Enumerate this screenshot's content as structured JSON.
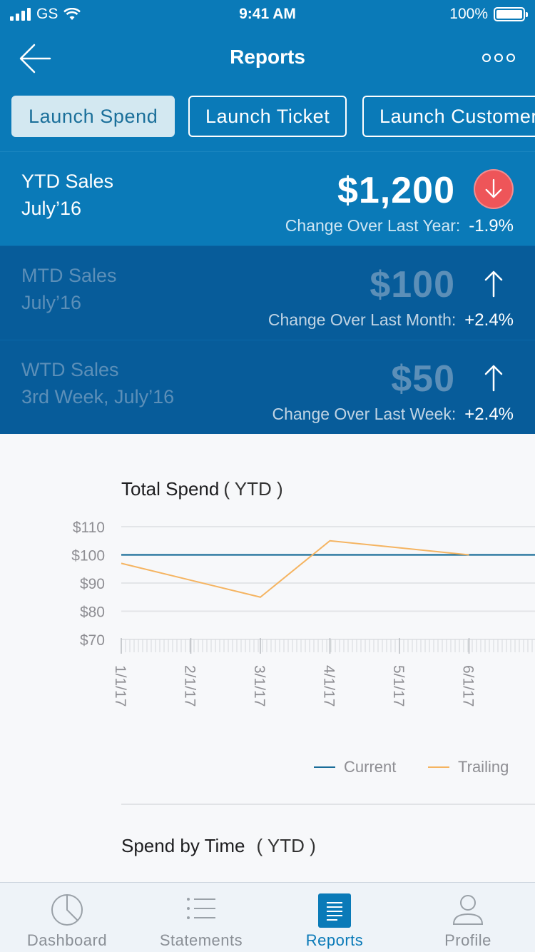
{
  "status_bar": {
    "carrier": "GS",
    "time": "9:41 AM",
    "battery": "100%"
  },
  "nav": {
    "title": "Reports"
  },
  "chips": [
    {
      "label": "Launch Spend",
      "active": true
    },
    {
      "label": "Launch Ticket",
      "active": false
    },
    {
      "label": "Launch Customer",
      "active": false
    }
  ],
  "stats": [
    {
      "title": "YTD Sales",
      "period": "July’16",
      "amount": "$1,200",
      "change_label": "Change Over Last Year:",
      "change_value": "-1.9%",
      "direction": "down"
    },
    {
      "title": "MTD Sales",
      "period": "July’16",
      "amount": "$100",
      "change_label": "Change Over Last Month:",
      "change_value": "+2.4%",
      "direction": "up"
    },
    {
      "title": "WTD Sales",
      "period": "3rd Week, July’16",
      "amount": "$50",
      "change_label": "Change Over Last Week:",
      "change_value": "+2.4%",
      "direction": "up"
    }
  ],
  "total_spend": {
    "title": "Total Spend",
    "qualifier": "( YTD )"
  },
  "spend_by_time": {
    "title": "Spend by Time",
    "qualifier": "( YTD )"
  },
  "chart_data": {
    "type": "line",
    "title": "Total Spend ( YTD )",
    "x": [
      "1/1/17",
      "2/1/17",
      "3/1/17",
      "4/1/17",
      "5/1/17",
      "6/1/17"
    ],
    "y_ticks": [
      "$110",
      "$100",
      "$90",
      "$80",
      "$70"
    ],
    "ylim": [
      70,
      110
    ],
    "grid": true,
    "legend": "bottom-right",
    "series": [
      {
        "name": "Current",
        "color": "#1a6d99",
        "values": [
          100,
          100,
          100,
          100,
          100,
          100
        ]
      },
      {
        "name": "Trailing",
        "color": "#f5b461",
        "values": [
          97,
          91,
          85,
          105,
          102.5,
          100
        ]
      }
    ]
  },
  "tabs": [
    {
      "label": "Dashboard",
      "icon": "pie-chart-icon",
      "active": false
    },
    {
      "label": "Statements",
      "icon": "list-icon",
      "active": false
    },
    {
      "label": "Reports",
      "icon": "document-icon",
      "active": true
    },
    {
      "label": "Profile",
      "icon": "person-icon",
      "active": false
    }
  ],
  "colors": {
    "primary": "#0a7ab8",
    "dark": "#075c9a",
    "danger": "#ee5559",
    "trailing": "#f5b461",
    "current": "#1a6d99"
  }
}
